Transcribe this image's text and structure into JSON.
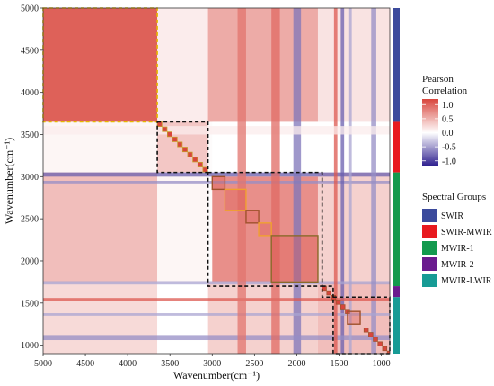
{
  "chart_data": {
    "type": "heatmap",
    "title": "",
    "xlabel": "Wavenumber(cm⁻¹)",
    "ylabel": "Wavenumber(cm⁻¹)",
    "xlim": [
      5000,
      900
    ],
    "ylim": [
      900,
      5000
    ],
    "x_ticks": [
      5000,
      4500,
      4000,
      3500,
      3000,
      2500,
      2000,
      1500,
      1000
    ],
    "y_ticks": [
      1000,
      1500,
      2000,
      2500,
      3000,
      3500,
      4000,
      4500,
      5000
    ],
    "colorbar": {
      "title_line1": "Pearson",
      "title_line2": "Correlation",
      "range": [
        -1.2,
        1.2
      ],
      "ticks": [
        {
          "label": "1.0",
          "value": 1.0
        },
        {
          "label": "0.5",
          "value": 0.5
        },
        {
          "label": "0.0",
          "value": 0.0
        },
        {
          "label": "-0.5",
          "value": -0.5
        },
        {
          "label": "-1.0",
          "value": -1.0
        }
      ],
      "colors": [
        "#2a1b8c",
        "#ffffff",
        "#d8453c"
      ]
    },
    "spectral_groups": {
      "title": "Spectral Groups",
      "groups": [
        {
          "name": "SWIR",
          "range": [
            3650,
            5000
          ],
          "color": "#3b4a9c"
        },
        {
          "name": "SWIR-MWIR",
          "range": [
            3050,
            3650
          ],
          "color": "#e8191f"
        },
        {
          "name": "MWIR-1",
          "range": [
            1700,
            3050
          ],
          "color": "#139a4e"
        },
        {
          "name": "MWIR-2",
          "range": [
            1570,
            1700
          ],
          "color": "#6a1b8e"
        },
        {
          "name": "MWIR-LWIR",
          "range": [
            900,
            1570
          ],
          "color": "#179b95"
        }
      ]
    },
    "group_boxes": [
      {
        "range": [
          3650,
          5000
        ],
        "color": "#e6b800",
        "style": "dashed"
      },
      {
        "range": [
          3050,
          3650
        ],
        "color": "#111111",
        "style": "dashed"
      },
      {
        "range": [
          1700,
          3050
        ],
        "color": "#111111",
        "style": "dashed"
      },
      {
        "range": [
          1570,
          1700
        ],
        "color": "#111111",
        "style": "dashed"
      },
      {
        "range": [
          900,
          1570
        ],
        "color": "#111111",
        "style": "dashed"
      }
    ],
    "cluster_boxes": [
      {
        "range": [
          2850,
          3000
        ],
        "color": "#a0522d"
      },
      {
        "range": [
          2600,
          2850
        ],
        "color": "#f0a030"
      },
      {
        "range": [
          2450,
          2600
        ],
        "color": "#a0522d"
      },
      {
        "range": [
          2300,
          2450
        ],
        "color": "#f0a030"
      },
      {
        "range": [
          1750,
          2300
        ],
        "color": "#8a6a2a"
      },
      {
        "range": [
          1250,
          1400
        ],
        "color": "#a0522d"
      }
    ],
    "blocks": [
      {
        "x": [
          3650,
          5000
        ],
        "y": [
          3650,
          5000
        ],
        "value": 0.85
      },
      {
        "x": [
          1750,
          3000
        ],
        "y": [
          1750,
          3000
        ],
        "value": 0.6
      },
      {
        "x": [
          1750,
          3650
        ],
        "y": [
          3650,
          5000
        ],
        "value": 0.45
      },
      {
        "x": [
          3650,
          5000
        ],
        "y": [
          1750,
          3650
        ],
        "value": 0.35
      },
      {
        "x": [
          900,
          1750
        ],
        "y": [
          900,
          1750
        ],
        "value": 0.35
      },
      {
        "x": [
          1750,
          3000
        ],
        "y": [
          3050,
          3650
        ],
        "value": 0.0
      },
      {
        "x": [
          3050,
          3650
        ],
        "y": [
          1750,
          3050
        ],
        "value": 0.05
      },
      {
        "x": [
          900,
          1750
        ],
        "y": [
          1750,
          3050
        ],
        "value": 0.25
      },
      {
        "x": [
          1750,
          3050
        ],
        "y": [
          900,
          1750
        ],
        "value": 0.25
      },
      {
        "x": [
          3650,
          5000
        ],
        "y": [
          900,
          1750
        ],
        "value": 0.2
      },
      {
        "x": [
          900,
          1750
        ],
        "y": [
          3650,
          5000
        ],
        "value": 0.15
      },
      {
        "x": [
          900,
          1750
        ],
        "y": [
          3050,
          3650
        ],
        "value": 0.0
      },
      {
        "x": [
          3050,
          3650
        ],
        "y": [
          900,
          1750
        ],
        "value": 0.0
      },
      {
        "x": [
          3050,
          3650
        ],
        "y": [
          3650,
          5000
        ],
        "value": 0.1
      },
      {
        "x": [
          3650,
          5000
        ],
        "y": [
          3050,
          3650
        ],
        "value": 0.05
      },
      {
        "x": [
          3050,
          3650
        ],
        "y": [
          3050,
          3650
        ],
        "value": 0.3
      }
    ],
    "bands": [
      {
        "axis": "y",
        "range": [
          3000,
          3050
        ],
        "value": -0.7
      },
      {
        "axis": "y",
        "range": [
          2920,
          2950
        ],
        "value": -0.5
      },
      {
        "axis": "x",
        "range": [
          1950,
          2040
        ],
        "value": -0.6
      },
      {
        "axis": "x",
        "range": [
          1440,
          1480
        ],
        "value": -0.7
      },
      {
        "axis": "y",
        "range": [
          1720,
          1760
        ],
        "value": -0.4
      },
      {
        "axis": "y",
        "range": [
          1060,
          1120
        ],
        "value": -0.5
      },
      {
        "axis": "x",
        "range": [
          1060,
          1120
        ],
        "value": -0.5
      },
      {
        "axis": "y",
        "range": [
          1350,
          1380
        ],
        "value": -0.4
      },
      {
        "axis": "x",
        "range": [
          1350,
          1380
        ],
        "value": -0.4
      },
      {
        "axis": "y",
        "range": [
          1520,
          1560
        ],
        "value": 0.9
      },
      {
        "axis": "x",
        "range": [
          1520,
          1560
        ],
        "value": 0.9
      },
      {
        "axis": "y",
        "range": [
          3500,
          3600
        ],
        "value": 0.1
      },
      {
        "axis": "x",
        "range": [
          2600,
          2700
        ],
        "value": 0.75
      },
      {
        "axis": "x",
        "range": [
          2200,
          2300
        ],
        "value": 0.8
      }
    ]
  }
}
